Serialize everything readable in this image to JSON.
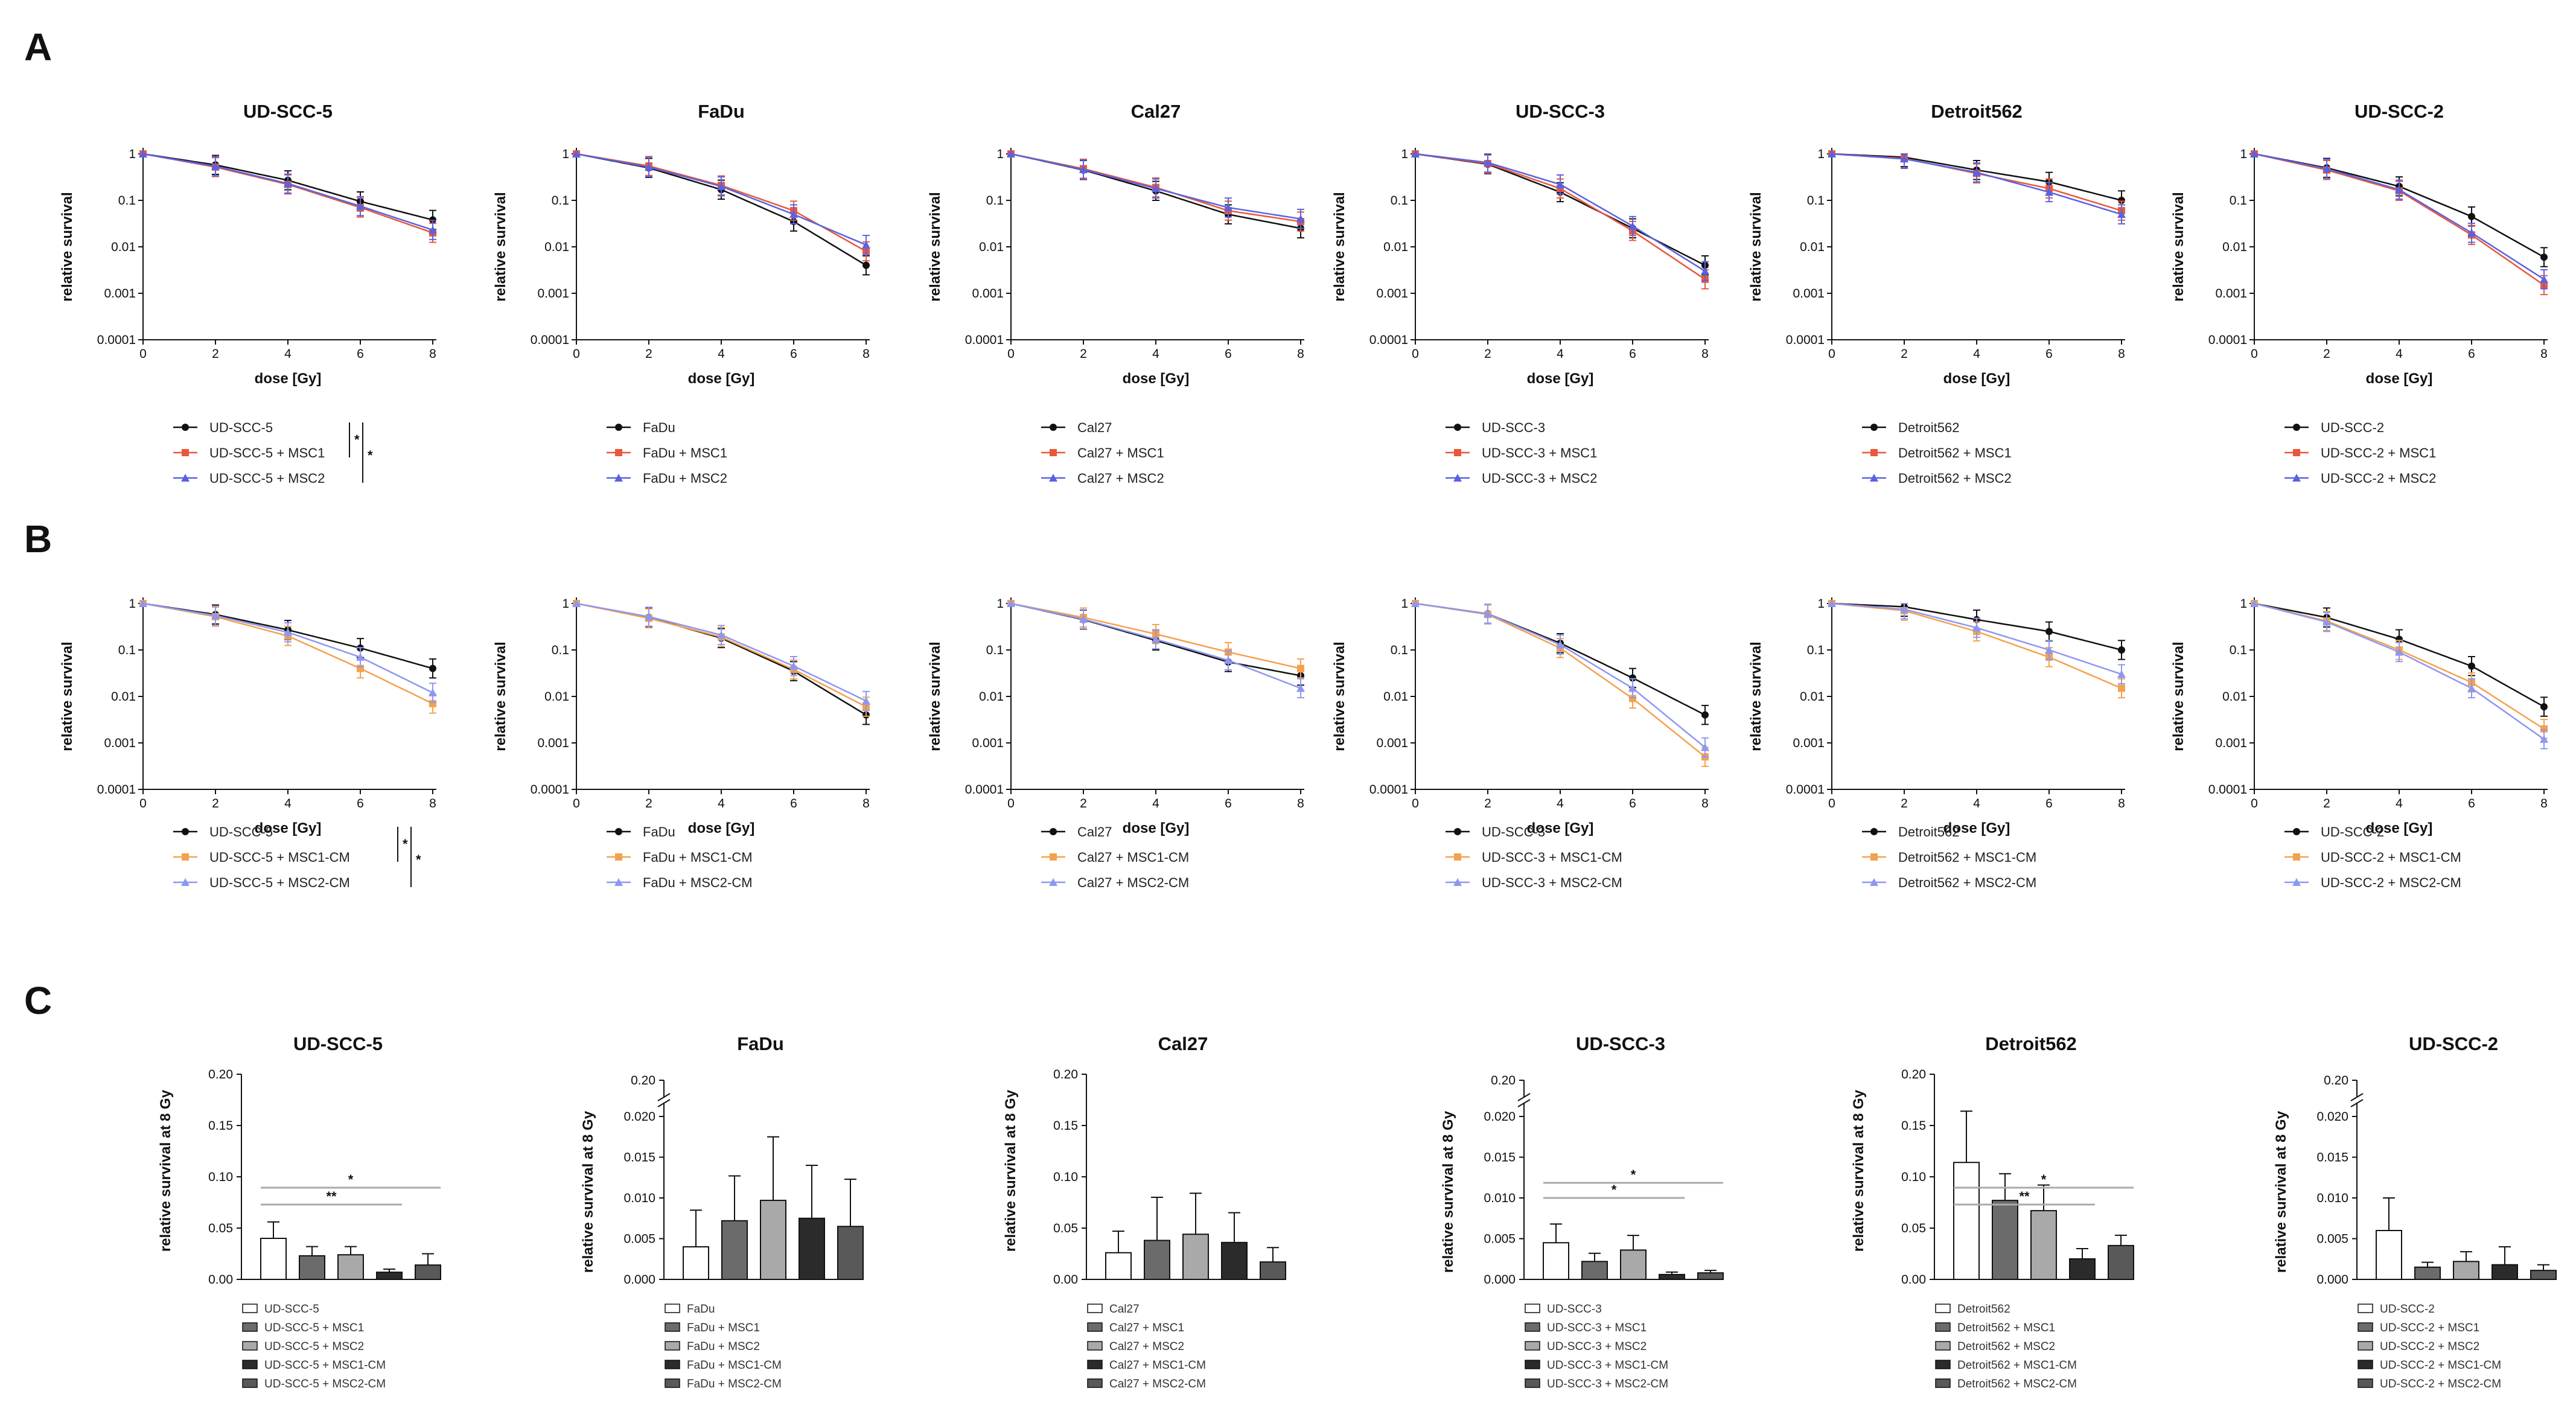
{
  "panels": {
    "a": "A",
    "b": "B",
    "c": "C"
  },
  "survival_axes": {
    "xlabel": "dose [Gy]",
    "ylabel": "relative survival",
    "x_ticks": [
      "0",
      "2",
      "4",
      "6",
      "8"
    ],
    "y_ticks": [
      "1",
      "0.1",
      "0.01",
      "0.001",
      "0.0001"
    ],
    "scale": "log10",
    "ylim": [
      0.0001,
      1
    ],
    "xlim": [
      0,
      8
    ]
  },
  "bar_axes": {
    "ylabel": "relative survival at  8 Gy",
    "ticks_linear": [
      "0.00",
      "0.05",
      "0.10",
      "0.15",
      "0.20"
    ],
    "ticks_broken": [
      "0.000",
      "0.005",
      "0.010",
      "0.015",
      "0.020"
    ],
    "tick_top_broken": "0.20"
  },
  "colors": {
    "control": "#111111",
    "msc1": "#e8583c",
    "msc2": "#5b62e0",
    "msc1cm": "#f4a14e",
    "msc2cm": "#8e97f0",
    "sig_bar": "#aaaaaa",
    "bar_fills": [
      "#ffffff",
      "#6b6b6b",
      "#a9a9a9",
      "#2b2b2b",
      "#595959"
    ]
  },
  "chart_data": [
    {
      "type": "line",
      "panel": "A",
      "title": "UD-SCC-5",
      "x": [
        0,
        2,
        4,
        6,
        8
      ],
      "yscale": "log",
      "series": [
        {
          "name": "UD-SCC-5",
          "values": [
            1,
            0.58,
            0.27,
            0.095,
            0.038
          ]
        },
        {
          "name": "UD-SCC-5 + MSC1",
          "values": [
            1,
            0.52,
            0.22,
            0.07,
            0.02
          ]
        },
        {
          "name": "UD-SCC-5 + MSC2",
          "values": [
            1,
            0.54,
            0.23,
            0.075,
            0.023
          ]
        }
      ],
      "significance": [
        {
          "label": "*",
          "pair": [
            0,
            1
          ]
        },
        {
          "label": "*",
          "pair": [
            0,
            2
          ]
        }
      ]
    },
    {
      "type": "line",
      "panel": "A",
      "title": "FaDu",
      "x": [
        0,
        2,
        4,
        6,
        8
      ],
      "yscale": "log",
      "series": [
        {
          "name": "FaDu",
          "values": [
            1,
            0.5,
            0.17,
            0.035,
            0.004
          ]
        },
        {
          "name": "FaDu + MSC1",
          "values": [
            1,
            0.55,
            0.21,
            0.06,
            0.008
          ]
        },
        {
          "name": "FaDu + MSC2",
          "values": [
            1,
            0.52,
            0.2,
            0.05,
            0.011
          ]
        }
      ]
    },
    {
      "type": "line",
      "panel": "A",
      "title": "Cal27",
      "x": [
        0,
        2,
        4,
        6,
        8
      ],
      "yscale": "log",
      "series": [
        {
          "name": "Cal27",
          "values": [
            1,
            0.45,
            0.16,
            0.05,
            0.025
          ]
        },
        {
          "name": "Cal27 + MSC1",
          "values": [
            1,
            0.48,
            0.19,
            0.06,
            0.035
          ]
        },
        {
          "name": "Cal27 + MSC2",
          "values": [
            1,
            0.46,
            0.18,
            0.07,
            0.04
          ]
        }
      ]
    },
    {
      "type": "line",
      "panel": "A",
      "title": "UD-SCC-3",
      "x": [
        0,
        2,
        4,
        6,
        8
      ],
      "yscale": "log",
      "series": [
        {
          "name": "UD-SCC-3",
          "values": [
            1,
            0.6,
            0.15,
            0.025,
            0.004
          ]
        },
        {
          "name": "UD-SCC-3 + MSC1",
          "values": [
            1,
            0.62,
            0.18,
            0.022,
            0.002
          ]
        },
        {
          "name": "UD-SCC-3 + MSC2",
          "values": [
            1,
            0.65,
            0.22,
            0.028,
            0.003
          ]
        }
      ]
    },
    {
      "type": "line",
      "panel": "A",
      "title": "Detroit562",
      "x": [
        0,
        2,
        4,
        6,
        8
      ],
      "yscale": "log",
      "series": [
        {
          "name": "Detroit562",
          "values": [
            1,
            0.85,
            0.45,
            0.25,
            0.1
          ]
        },
        {
          "name": "Detroit562 + MSC1",
          "values": [
            1,
            0.8,
            0.38,
            0.18,
            0.06
          ]
        },
        {
          "name": "Detroit562 + MSC2",
          "values": [
            1,
            0.78,
            0.4,
            0.15,
            0.05
          ]
        }
      ]
    },
    {
      "type": "line",
      "panel": "A",
      "title": "UD-SCC-2",
      "x": [
        0,
        2,
        4,
        6,
        8
      ],
      "yscale": "log",
      "series": [
        {
          "name": "UD-SCC-2",
          "values": [
            1,
            0.5,
            0.2,
            0.045,
            0.006
          ]
        },
        {
          "name": "UD-SCC-2 + MSC1",
          "values": [
            1,
            0.45,
            0.16,
            0.018,
            0.0015
          ]
        },
        {
          "name": "UD-SCC-2 + MSC2",
          "values": [
            1,
            0.48,
            0.17,
            0.02,
            0.002
          ]
        }
      ]
    },
    {
      "type": "line",
      "panel": "B",
      "title": "",
      "x": [
        0,
        2,
        4,
        6,
        8
      ],
      "yscale": "log",
      "series": [
        {
          "name": "UD-SCC-5",
          "values": [
            1,
            0.58,
            0.27,
            0.11,
            0.04
          ]
        },
        {
          "name": "UD-SCC-5 + MSC1-CM",
          "values": [
            1,
            0.52,
            0.2,
            0.04,
            0.007
          ]
        },
        {
          "name": "UD-SCC-5 + MSC2-CM",
          "values": [
            1,
            0.55,
            0.24,
            0.07,
            0.012
          ]
        }
      ],
      "significance": [
        {
          "label": "*",
          "pair": [
            0,
            1
          ]
        },
        {
          "label": "*",
          "pair": [
            0,
            2
          ]
        }
      ]
    },
    {
      "type": "line",
      "panel": "B",
      "title": "",
      "x": [
        0,
        2,
        4,
        6,
        8
      ],
      "yscale": "log",
      "series": [
        {
          "name": "FaDu",
          "values": [
            1,
            0.5,
            0.18,
            0.035,
            0.004
          ]
        },
        {
          "name": "FaDu + MSC1-CM",
          "values": [
            1,
            0.48,
            0.19,
            0.038,
            0.006
          ]
        },
        {
          "name": "FaDu + MSC2-CM",
          "values": [
            1,
            0.52,
            0.21,
            0.045,
            0.008
          ]
        }
      ]
    },
    {
      "type": "line",
      "panel": "B",
      "title": "",
      "x": [
        0,
        2,
        4,
        6,
        8
      ],
      "yscale": "log",
      "series": [
        {
          "name": "Cal27",
          "values": [
            1,
            0.45,
            0.16,
            0.055,
            0.028
          ]
        },
        {
          "name": "Cal27 + MSC1-CM",
          "values": [
            1,
            0.5,
            0.22,
            0.09,
            0.04
          ]
        },
        {
          "name": "Cal27 + MSC2-CM",
          "values": [
            1,
            0.46,
            0.17,
            0.06,
            0.015
          ]
        }
      ]
    },
    {
      "type": "line",
      "panel": "B",
      "title": "",
      "x": [
        0,
        2,
        4,
        6,
        8
      ],
      "yscale": "log",
      "series": [
        {
          "name": "UD-SCC-3",
          "values": [
            1,
            0.6,
            0.14,
            0.025,
            0.004
          ]
        },
        {
          "name": "UD-SCC-3 + MSC1-CM",
          "values": [
            1,
            0.58,
            0.11,
            0.009,
            0.0005
          ]
        },
        {
          "name": "UD-SCC-3 + MSC2-CM",
          "values": [
            1,
            0.6,
            0.13,
            0.015,
            0.0008
          ]
        }
      ]
    },
    {
      "type": "line",
      "panel": "B",
      "title": "",
      "x": [
        0,
        2,
        4,
        6,
        8
      ],
      "yscale": "log",
      "series": [
        {
          "name": "Detroit562",
          "values": [
            1,
            0.85,
            0.45,
            0.25,
            0.1
          ]
        },
        {
          "name": "Detroit562 + MSC1-CM",
          "values": [
            1,
            0.7,
            0.25,
            0.07,
            0.015
          ]
        },
        {
          "name": "Detroit562 + MSC2-CM",
          "values": [
            1,
            0.75,
            0.3,
            0.1,
            0.03
          ]
        }
      ]
    },
    {
      "type": "line",
      "panel": "B",
      "title": "",
      "x": [
        0,
        2,
        4,
        6,
        8
      ],
      "yscale": "log",
      "series": [
        {
          "name": "UD-SCC-2",
          "values": [
            1,
            0.5,
            0.17,
            0.045,
            0.006
          ]
        },
        {
          "name": "UD-SCC-2 + MSC1-CM",
          "values": [
            1,
            0.42,
            0.1,
            0.02,
            0.002
          ]
        },
        {
          "name": "UD-SCC-2 + MSC2-CM",
          "values": [
            1,
            0.4,
            0.09,
            0.015,
            0.0012
          ]
        }
      ]
    },
    {
      "type": "bar",
      "panel": "C",
      "title": "UD-SCC-5",
      "ylabel": "relative survival at  8 Gy",
      "ylim": [
        0,
        0.2
      ],
      "broken": false,
      "categories": [
        "UD-SCC-5",
        "UD-SCC-5 + MSC1",
        "UD-SCC-5 + MSC2",
        "UD-SCC-5 + MSC1-CM",
        "UD-SCC-5 + MSC2-CM"
      ],
      "values": [
        0.04,
        0.023,
        0.024,
        0.007,
        0.014
      ],
      "errors": [
        0.016,
        0.009,
        0.008,
        0.003,
        0.011
      ],
      "significance": [
        {
          "label": "**",
          "from": 0,
          "to": 3
        },
        {
          "label": "*",
          "from": 0,
          "to": 4
        }
      ]
    },
    {
      "type": "bar",
      "panel": "C",
      "title": "FaDu",
      "ylabel": "relative survival at  8 Gy",
      "ylim": [
        0,
        0.02
      ],
      "broken": true,
      "categories": [
        "FaDu",
        "FaDu + MSC1",
        "FaDu + MSC2",
        "FaDu + MSC1-CM",
        "FaDu + MSC2-CM"
      ],
      "values": [
        0.004,
        0.0072,
        0.0097,
        0.0075,
        0.0065
      ],
      "errors": [
        0.0045,
        0.0055,
        0.0078,
        0.0065,
        0.0058
      ]
    },
    {
      "type": "bar",
      "panel": "C",
      "title": "Cal27",
      "ylabel": "relative survival at  8 Gy",
      "ylim": [
        0,
        0.2
      ],
      "broken": false,
      "categories": [
        "Cal27",
        "Cal27 + MSC1",
        "Cal27 + MSC2",
        "Cal27 + MSC1-CM",
        "Cal27 + MSC2-CM"
      ],
      "values": [
        0.026,
        0.038,
        0.044,
        0.036,
        0.017
      ],
      "errors": [
        0.021,
        0.042,
        0.04,
        0.029,
        0.014
      ]
    },
    {
      "type": "bar",
      "panel": "C",
      "title": "UD-SCC-3",
      "ylabel": "relative survival at  8 Gy",
      "ylim": [
        0,
        0.02
      ],
      "broken": true,
      "categories": [
        "UD-SCC-3",
        "UD-SCC-3 + MSC1",
        "UD-SCC-3 + MSC2",
        "UD-SCC-3 + MSC1-CM",
        "UD-SCC-3 + MSC2-CM"
      ],
      "values": [
        0.0045,
        0.0022,
        0.0036,
        0.0006,
        0.0008
      ],
      "errors": [
        0.0023,
        0.001,
        0.0018,
        0.0003,
        0.0003
      ],
      "significance": [
        {
          "label": "*",
          "from": 0,
          "to": 3
        },
        {
          "label": "*",
          "from": 0,
          "to": 4
        }
      ]
    },
    {
      "type": "bar",
      "panel": "C",
      "title": "Detroit562",
      "ylabel": "relative survival at  8 Gy",
      "ylim": [
        0,
        0.2
      ],
      "broken": false,
      "categories": [
        "Detroit562",
        "Detroit562 + MSC1",
        "Detroit562 + MSC2",
        "Detroit562 + MSC1-CM",
        "Detroit562 + MSC2-CM"
      ],
      "values": [
        0.114,
        0.077,
        0.067,
        0.02,
        0.033
      ],
      "errors": [
        0.05,
        0.026,
        0.025,
        0.01,
        0.01
      ],
      "significance": [
        {
          "label": "**",
          "from": 0,
          "to": 3
        },
        {
          "label": "*",
          "from": 0,
          "to": 4
        }
      ]
    },
    {
      "type": "bar",
      "panel": "C",
      "title": "UD-SCC-2",
      "ylabel": "relative survival at  8 Gy",
      "ylim": [
        0,
        0.02
      ],
      "broken": true,
      "categories": [
        "UD-SCC-2",
        "UD-SCC-2 + MSC1",
        "UD-SCC-2 + MSC2",
        "UD-SCC-2 + MSC1-CM",
        "UD-SCC-2 + MSC2-CM"
      ],
      "values": [
        0.006,
        0.0015,
        0.0022,
        0.0018,
        0.0011
      ],
      "errors": [
        0.004,
        0.0006,
        0.0012,
        0.0022,
        0.0007
      ]
    }
  ]
}
